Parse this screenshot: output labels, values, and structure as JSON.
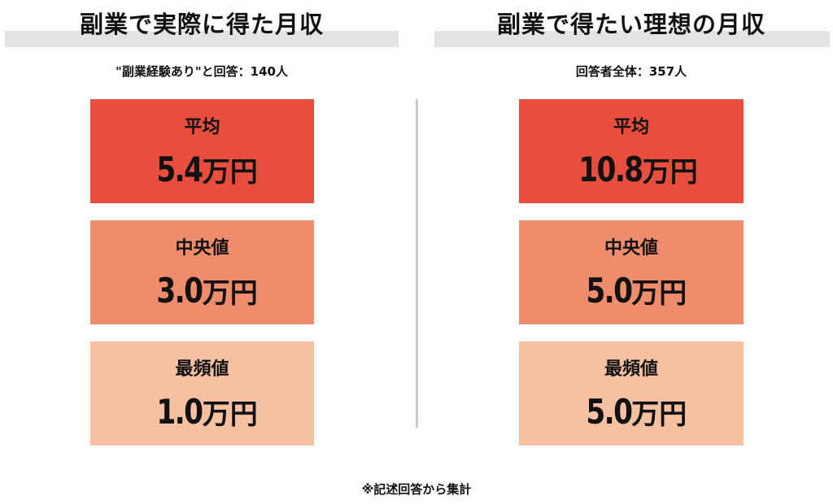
{
  "left": {
    "title": "副業で実際に得た月収",
    "note": "\"副業経験あり\"と回答：140人",
    "stats": [
      {
        "label": "平均",
        "value": "5.4",
        "unit": "万円"
      },
      {
        "label": "中央値",
        "value": "3.0",
        "unit": "万円"
      },
      {
        "label": "最頻値",
        "value": "1.0",
        "unit": "万円"
      }
    ]
  },
  "right": {
    "title": "副業で得たい理想の月収",
    "note": "回答者全体：357人",
    "stats": [
      {
        "label": "平均",
        "value": "10.8",
        "unit": "万円"
      },
      {
        "label": "中央値",
        "value": "5.0",
        "unit": "万円"
      },
      {
        "label": "最頻値",
        "value": "5.0",
        "unit": "万円"
      }
    ]
  },
  "footnote": "※記述回答から集計",
  "colors": {
    "average": "#e84e3e",
    "median": "#ee8c6c",
    "mode": "#f6c0a2",
    "title_bar": "#e3e3e3",
    "divider": "#c9c9c9"
  }
}
